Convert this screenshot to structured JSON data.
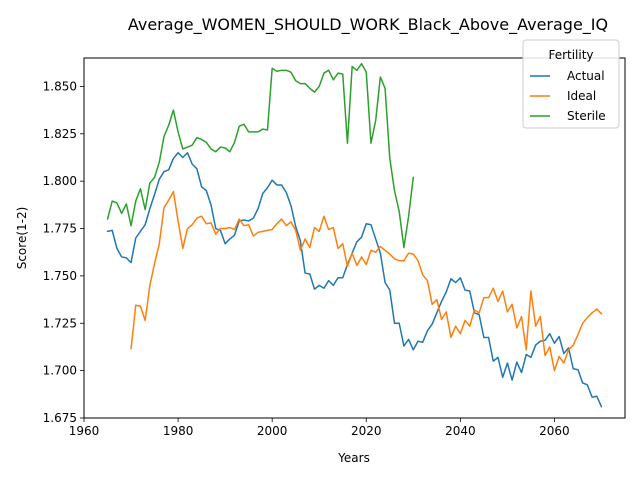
{
  "chart_data": {
    "type": "line",
    "title": "Average_WOMEN_SHOULD_WORK_Black_Above_Average_IQ",
    "xlabel": "Years",
    "ylabel": "Score(1-2)",
    "xlim": [
      1960,
      2075
    ],
    "ylim": [
      1.675,
      1.865
    ],
    "xticks": [
      1960,
      1980,
      2000,
      2020,
      2040,
      2060
    ],
    "yticks": [
      1.675,
      1.7,
      1.725,
      1.75,
      1.775,
      1.8,
      1.825,
      1.85
    ],
    "ytick_labels": [
      "1.675",
      "1.700",
      "1.725",
      "1.750",
      "1.775",
      "1.800",
      "1.825",
      "1.850"
    ],
    "grid": false,
    "legend": {
      "title": "Fertility",
      "placement": "upper right"
    },
    "series": [
      {
        "name": "Actual",
        "color": "#1f77b4",
        "x": [
          1965,
          1966,
          1967,
          1968,
          1969,
          1970,
          1971,
          1972,
          1973,
          1974,
          1975,
          1976,
          1977,
          1978,
          1979,
          1980,
          1981,
          1982,
          1983,
          1984,
          1985,
          1986,
          1987,
          1988,
          1989,
          1990,
          1991,
          1992,
          1993,
          1994,
          1995,
          1996,
          1997,
          1998,
          1999,
          2000,
          2001,
          2002,
          2003,
          2004,
          2005,
          2006,
          2007,
          2008,
          2009,
          2010,
          2011,
          2012,
          2013,
          2014,
          2015,
          2016,
          2017,
          2018,
          2019,
          2020,
          2021,
          2022,
          2023,
          2024,
          2025,
          2026,
          2027,
          2028,
          2029,
          2030,
          2031,
          2032,
          2033,
          2034,
          2035,
          2036,
          2037,
          2038,
          2039,
          2040,
          2041,
          2042,
          2043,
          2044,
          2045,
          2046,
          2047,
          2048,
          2049,
          2050,
          2051,
          2052,
          2053,
          2054,
          2055,
          2056,
          2057,
          2058,
          2059,
          2060,
          2061,
          2062,
          2063,
          2064,
          2065,
          2066,
          2067,
          2068,
          2069,
          2070
        ],
        "y": [
          1.7735,
          1.774,
          1.7645,
          1.76,
          1.7595,
          1.757,
          1.77,
          1.7735,
          1.777,
          1.7855,
          1.793,
          1.801,
          1.805,
          1.806,
          1.812,
          1.815,
          1.8125,
          1.815,
          1.809,
          1.8065,
          1.797,
          1.795,
          1.7875,
          1.775,
          1.774,
          1.767,
          1.7695,
          1.7715,
          1.779,
          1.7795,
          1.779,
          1.7805,
          1.7855,
          1.7935,
          1.7965,
          1.8005,
          1.798,
          1.798,
          1.794,
          1.787,
          1.776,
          1.7685,
          1.7515,
          1.751,
          1.743,
          1.745,
          1.7435,
          1.7475,
          1.745,
          1.749,
          1.749,
          1.756,
          1.762,
          1.768,
          1.7705,
          1.7775,
          1.777,
          1.7695,
          1.762,
          1.7465,
          1.7425,
          1.725,
          1.725,
          1.713,
          1.7165,
          1.711,
          1.7155,
          1.715,
          1.721,
          1.7245,
          1.7305,
          1.7365,
          1.7415,
          1.7485,
          1.7465,
          1.749,
          1.7425,
          1.742,
          1.7305,
          1.7295,
          1.7175,
          1.7175,
          1.705,
          1.707,
          1.6965,
          1.704,
          1.695,
          1.7045,
          1.699,
          1.7085,
          1.707,
          1.7135,
          1.7155,
          1.716,
          1.7195,
          1.7145,
          1.718,
          1.709,
          1.712,
          1.701,
          1.7005,
          1.6935,
          1.6925,
          1.686,
          1.6865,
          1.681
        ]
      },
      {
        "name": "Ideal",
        "color": "#ff7f0e",
        "x": [
          1970,
          1971,
          1972,
          1973,
          1974,
          1975,
          1976,
          1977,
          1978,
          1979,
          1980,
          1981,
          1982,
          1983,
          1984,
          1985,
          1986,
          1987,
          1988,
          1989,
          1990,
          1991,
          1992,
          1993,
          1994,
          1995,
          1996,
          1997,
          1998,
          1999,
          2000,
          2001,
          2002,
          2003,
          2004,
          2005,
          2006,
          2007,
          2008,
          2009,
          2010,
          2011,
          2012,
          2013,
          2014,
          2015,
          2016,
          2017,
          2018,
          2019,
          2020,
          2021,
          2022,
          2023,
          2024,
          2025,
          2026,
          2027,
          2028,
          2029,
          2030,
          2031,
          2032,
          2033,
          2034,
          2035,
          2036,
          2037,
          2038,
          2039,
          2040,
          2041,
          2042,
          2043,
          2044,
          2045,
          2046,
          2047,
          2048,
          2049,
          2050,
          2051,
          2052,
          2053,
          2054,
          2055,
          2056,
          2057,
          2058,
          2059,
          2060,
          2061,
          2062,
          2063,
          2064,
          2065,
          2066,
          2067,
          2068,
          2069,
          2070
        ],
        "y": [
          1.7115,
          1.7345,
          1.734,
          1.7265,
          1.745,
          1.7565,
          1.767,
          1.786,
          1.79,
          1.7945,
          1.779,
          1.7645,
          1.775,
          1.777,
          1.7805,
          1.7815,
          1.7775,
          1.778,
          1.772,
          1.775,
          1.775,
          1.7755,
          1.7745,
          1.78,
          1.7765,
          1.777,
          1.771,
          1.773,
          1.7735,
          1.774,
          1.7745,
          1.7775,
          1.78,
          1.7765,
          1.7785,
          1.774,
          1.7635,
          1.7695,
          1.765,
          1.7755,
          1.7735,
          1.7815,
          1.7745,
          1.7755,
          1.7645,
          1.767,
          1.755,
          1.762,
          1.7555,
          1.76,
          1.756,
          1.7635,
          1.7625,
          1.7655,
          1.7635,
          1.7615,
          1.759,
          1.758,
          1.758,
          1.762,
          1.7615,
          1.758,
          1.7505,
          1.7475,
          1.735,
          1.7375,
          1.727,
          1.731,
          1.7175,
          1.7235,
          1.7195,
          1.7265,
          1.7235,
          1.732,
          1.7305,
          1.7385,
          1.7385,
          1.7435,
          1.7365,
          1.742,
          1.731,
          1.735,
          1.7225,
          1.7285,
          1.711,
          1.742,
          1.7235,
          1.7285,
          1.708,
          1.7125,
          1.7,
          1.7075,
          1.704,
          1.711,
          1.7135,
          1.719,
          1.725,
          1.728,
          1.7305,
          1.7325,
          1.73
        ]
      },
      {
        "name": "Sterile",
        "color": "#2ca02c",
        "x": [
          1965,
          1966,
          1967,
          1968,
          1969,
          1970,
          1971,
          1972,
          1973,
          1974,
          1975,
          1976,
          1977,
          1978,
          1979,
          1980,
          1981,
          1982,
          1983,
          1984,
          1985,
          1986,
          1987,
          1988,
          1989,
          1990,
          1991,
          1992,
          1993,
          1994,
          1995,
          1996,
          1997,
          1998,
          1999,
          2000,
          2001,
          2002,
          2003,
          2004,
          2005,
          2006,
          2007,
          2008,
          2009,
          2010,
          2011,
          2012,
          2013,
          2014,
          2015,
          2016,
          2017,
          2018,
          2019,
          2020,
          2021,
          2022,
          2023,
          2024,
          2025,
          2026,
          2027,
          2028,
          2029,
          2030
        ],
        "y": [
          1.78,
          1.7895,
          1.7885,
          1.783,
          1.788,
          1.7765,
          1.7895,
          1.796,
          1.785,
          1.799,
          1.802,
          1.81,
          1.8235,
          1.8295,
          1.8375,
          1.826,
          1.817,
          1.818,
          1.819,
          1.823,
          1.822,
          1.8205,
          1.817,
          1.8155,
          1.818,
          1.8175,
          1.8155,
          1.8205,
          1.829,
          1.83,
          1.826,
          1.826,
          1.826,
          1.8275,
          1.827,
          1.8595,
          1.858,
          1.8585,
          1.8585,
          1.8575,
          1.853,
          1.8515,
          1.8515,
          1.849,
          1.847,
          1.85,
          1.857,
          1.8585,
          1.8535,
          1.857,
          1.8565,
          1.82,
          1.8605,
          1.8585,
          1.862,
          1.8575,
          1.82,
          1.832,
          1.855,
          1.849,
          1.812,
          1.795,
          1.784,
          1.765,
          1.7815,
          1.802
        ]
      }
    ]
  }
}
